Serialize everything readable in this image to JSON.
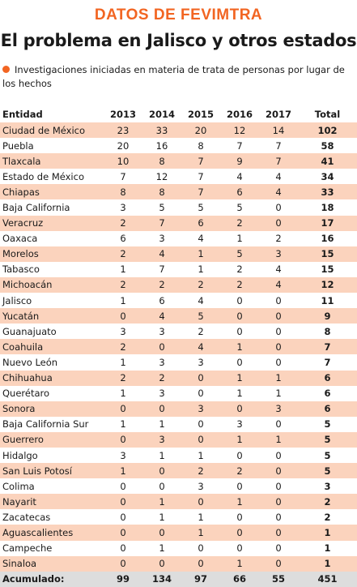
{
  "header": {
    "kicker": "DATOS DE FEVIMTRA",
    "title": "El problema en Jalisco y otros estados",
    "subtitle": "Investigaciones iniciadas en materia de trata de personas por lugar de los hechos"
  },
  "colors": {
    "accent": "#f26522",
    "row_shade": "#fbd3bd",
    "total_shade": "#dddddd"
  },
  "table": {
    "columns": [
      "Entidad",
      "2013",
      "2014",
      "2015",
      "2016",
      "2017",
      "Total"
    ],
    "rows": [
      [
        "Ciudad de México",
        "23",
        "33",
        "20",
        "12",
        "14",
        "102"
      ],
      [
        "Puebla",
        "20",
        "16",
        "8",
        "7",
        "7",
        "58"
      ],
      [
        "Tlaxcala",
        "10",
        "8",
        "7",
        "9",
        "7",
        "41"
      ],
      [
        "Estado de México",
        "7",
        "12",
        "7",
        "4",
        "4",
        "34"
      ],
      [
        "Chiapas",
        "8",
        "8",
        "7",
        "6",
        "4",
        "33"
      ],
      [
        "Baja California",
        "3",
        "5",
        "5",
        "5",
        "0",
        "18"
      ],
      [
        "Veracruz",
        "2",
        "7",
        "6",
        "2",
        "0",
        "17"
      ],
      [
        "Oaxaca",
        "6",
        "3",
        "4",
        "1",
        "2",
        "16"
      ],
      [
        "Morelos",
        "2",
        "4",
        "1",
        "5",
        "3",
        "15"
      ],
      [
        "Tabasco",
        "1",
        "7",
        "1",
        "2",
        "4",
        "15"
      ],
      [
        "Michoacán",
        "2",
        "2",
        "2",
        "2",
        "4",
        "12"
      ],
      [
        "Jalisco",
        "1",
        "6",
        "4",
        "0",
        "0",
        "11"
      ],
      [
        "Yucatán",
        "0",
        "4",
        "5",
        "0",
        "0",
        "9"
      ],
      [
        "Guanajuato",
        "3",
        "3",
        "2",
        "0",
        "0",
        "8"
      ],
      [
        "Coahuila",
        "2",
        "0",
        "4",
        "1",
        "0",
        "7"
      ],
      [
        "Nuevo León",
        "1",
        "3",
        "3",
        "0",
        "0",
        "7"
      ],
      [
        "Chihuahua",
        "2",
        "2",
        "0",
        "1",
        "1",
        "6"
      ],
      [
        "Querétaro",
        "1",
        "3",
        "0",
        "1",
        "1",
        "6"
      ],
      [
        "Sonora",
        "0",
        "0",
        "3",
        "0",
        "3",
        "6"
      ],
      [
        "Baja California Sur",
        "1",
        "1",
        "0",
        "3",
        "0",
        "5"
      ],
      [
        "Guerrero",
        "0",
        "3",
        "0",
        "1",
        "1",
        "5"
      ],
      [
        "Hidalgo",
        "3",
        "1",
        "1",
        "0",
        "0",
        "5"
      ],
      [
        "San Luis Potosí",
        "1",
        "0",
        "2",
        "2",
        "0",
        "5"
      ],
      [
        "Colima",
        "0",
        "0",
        "3",
        "0",
        "0",
        "3"
      ],
      [
        "Nayarit",
        "0",
        "1",
        "0",
        "1",
        "0",
        "2"
      ],
      [
        "Zacatecas",
        "0",
        "1",
        "1",
        "0",
        "0",
        "2"
      ],
      [
        "Aguascalientes",
        "0",
        "0",
        "1",
        "0",
        "0",
        "1"
      ],
      [
        "Campeche",
        "0",
        "1",
        "0",
        "0",
        "0",
        "1"
      ],
      [
        "Sinaloa",
        "0",
        "0",
        "0",
        "1",
        "0",
        "1"
      ]
    ],
    "total_row": [
      "Acumulado:",
      "99",
      "134",
      "97",
      "66",
      "55",
      "451"
    ]
  }
}
